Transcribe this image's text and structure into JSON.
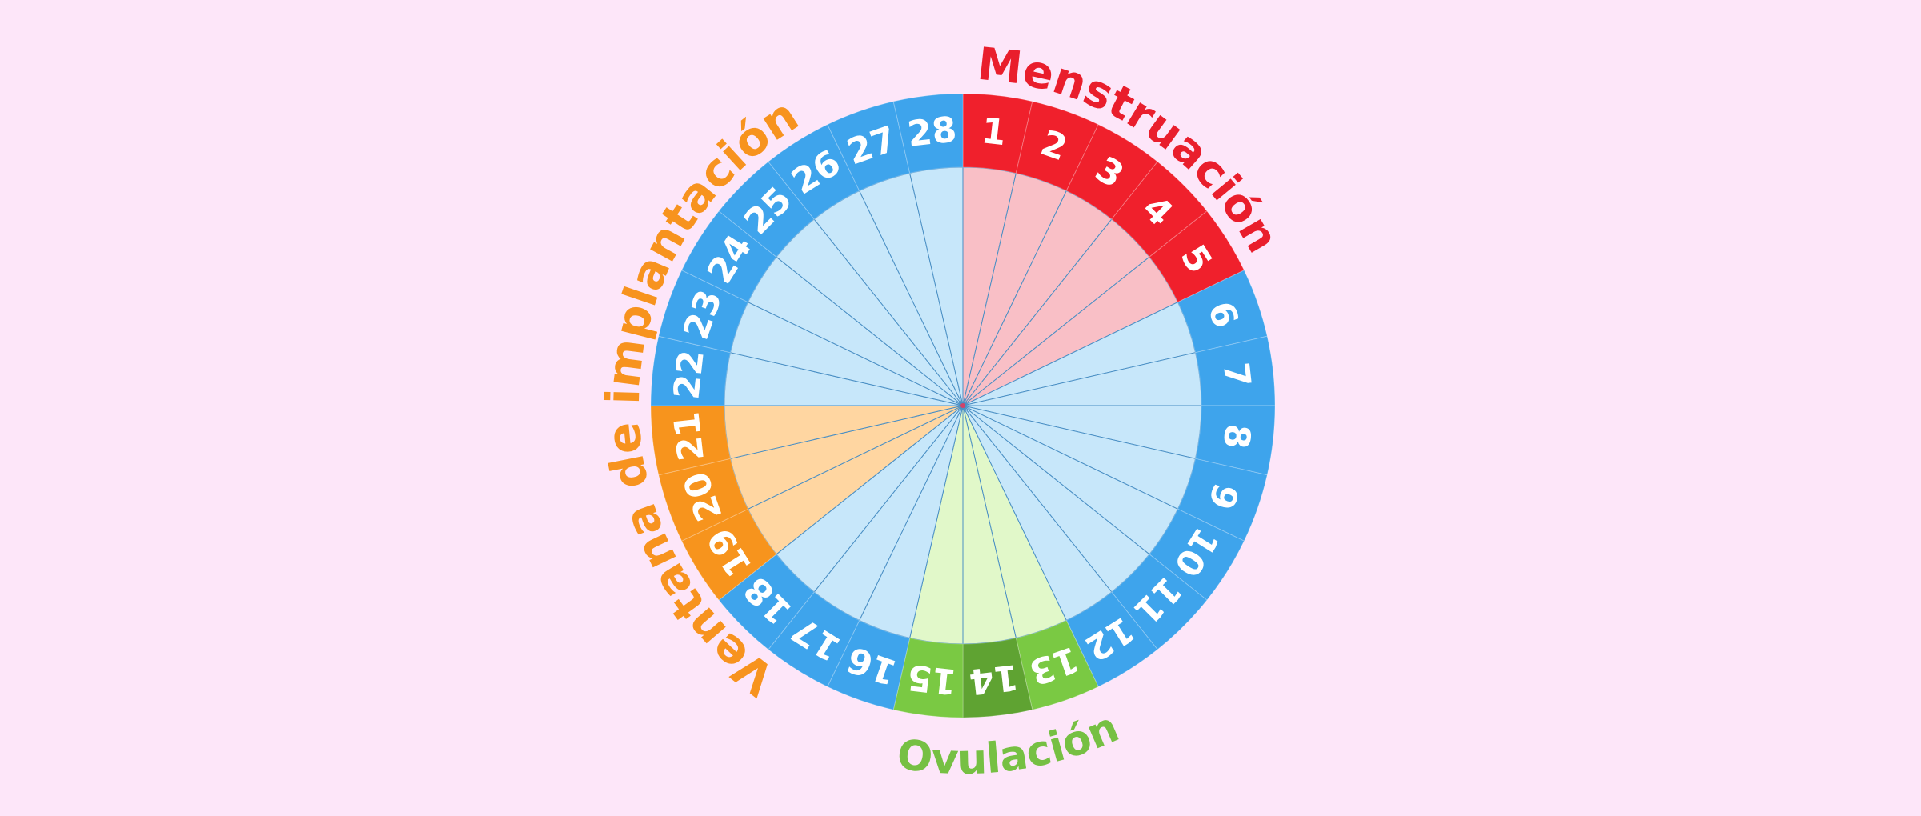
{
  "phases": [
    {
      "label": "Menstruación",
      "color": "#e91e2c"
    },
    {
      "label": "Ovulación",
      "color": "#76c043"
    },
    {
      "label": "Ventana de implantación",
      "color": "#f7931e"
    }
  ],
  "days": [
    {
      "label": "1",
      "color": "#f0202c",
      "fill": "#f9bfc6"
    },
    {
      "label": "2",
      "color": "#f0202c",
      "fill": "#f9bfc6"
    },
    {
      "label": "3",
      "color": "#f0202c",
      "fill": "#f9bfc6"
    },
    {
      "label": "4",
      "color": "#f0202c",
      "fill": "#f9bfc6"
    },
    {
      "label": "5",
      "color": "#f0202c",
      "fill": "#f9bfc6"
    },
    {
      "label": "6",
      "color": "#3ea4ec",
      "fill": "#c7e7fa"
    },
    {
      "label": "7",
      "color": "#3ea4ec",
      "fill": "#c7e7fa"
    },
    {
      "label": "8",
      "color": "#3ea4ec",
      "fill": "#c7e7fa"
    },
    {
      "label": "9",
      "color": "#3ea4ec",
      "fill": "#c7e7fa"
    },
    {
      "label": "10",
      "color": "#3ea4ec",
      "fill": "#c7e7fa"
    },
    {
      "label": "11",
      "color": "#3ea4ec",
      "fill": "#c7e7fa"
    },
    {
      "label": "12",
      "color": "#3ea4ec",
      "fill": "#c7e7fa"
    },
    {
      "label": "13",
      "color": "#7ac943",
      "fill": "#e1f8c9"
    },
    {
      "label": "14",
      "color": "#5fa332",
      "fill": "#e1f8c9"
    },
    {
      "label": "15",
      "color": "#7ac943",
      "fill": "#e1f8c9"
    },
    {
      "label": "16",
      "color": "#3ea4ec",
      "fill": "#c7e7fa"
    },
    {
      "label": "17",
      "color": "#3ea4ec",
      "fill": "#c7e7fa"
    },
    {
      "label": "18",
      "color": "#3ea4ec",
      "fill": "#c7e7fa"
    },
    {
      "label": "19",
      "color": "#f7941d",
      "fill": "#ffd6a1"
    },
    {
      "label": "20",
      "color": "#f7941d",
      "fill": "#ffd6a1"
    },
    {
      "label": "21",
      "color": "#f7941d",
      "fill": "#ffd6a1"
    },
    {
      "label": "22",
      "color": "#3ea4ec",
      "fill": "#c7e7fa"
    },
    {
      "label": "23",
      "color": "#3ea4ec",
      "fill": "#c7e7fa"
    },
    {
      "label": "24",
      "color": "#3ea4ec",
      "fill": "#c7e7fa"
    },
    {
      "label": "25",
      "color": "#3ea4ec",
      "fill": "#c7e7fa"
    },
    {
      "label": "26",
      "color": "#3ea4ec",
      "fill": "#c7e7fa"
    },
    {
      "label": "27",
      "color": "#3ea4ec",
      "fill": "#c7e7fa"
    },
    {
      "label": "28",
      "color": "#3ea4ec",
      "fill": "#c7e7fa"
    }
  ]
}
